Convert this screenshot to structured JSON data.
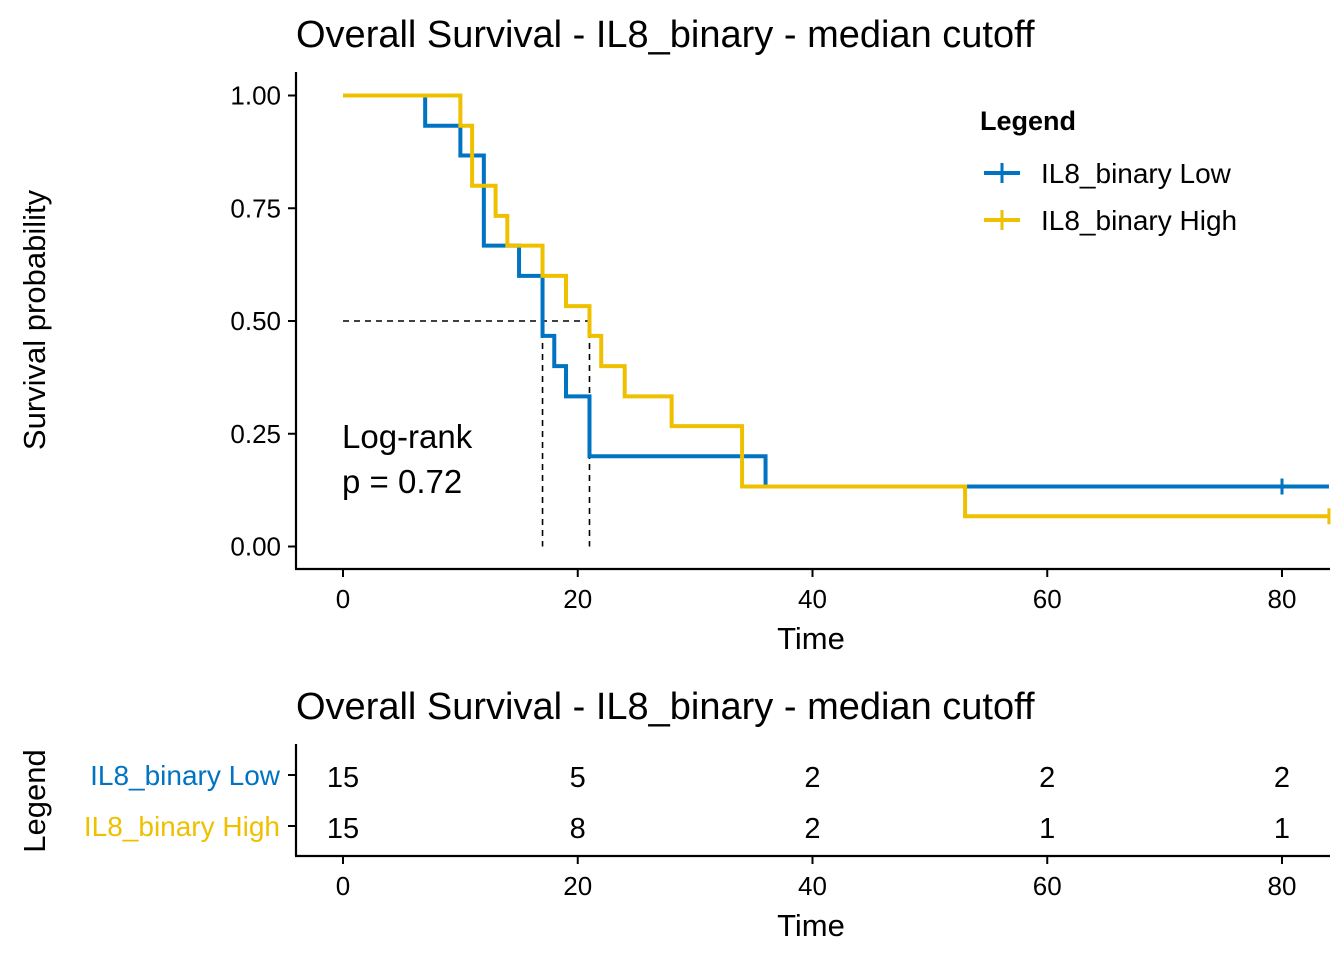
{
  "colors": {
    "low": "#0073C2",
    "high": "#EFC000",
    "axis": "#000000"
  },
  "chart_data": [
    {
      "type": "line",
      "subtype": "kaplan-meier",
      "title": "Overall Survival - IL8_binary  - median cutoff",
      "xlabel": "Time",
      "ylabel": "Survival probability",
      "xlim": [
        -4,
        84
      ],
      "ylim": [
        -0.05,
        1.05
      ],
      "x_ticks": [
        0,
        20,
        40,
        60,
        80
      ],
      "y_ticks": [
        0,
        0.25,
        0.5,
        0.75,
        1.0
      ],
      "y_tick_labels": [
        "0.00",
        "0.25",
        "0.50",
        "0.75",
        "1.00"
      ],
      "x_tick_labels": [
        "0",
        "20",
        "40",
        "60",
        "80"
      ],
      "grid": false,
      "legend": {
        "title": "Legend",
        "position": "top-right",
        "entries": [
          "IL8_binary Low",
          "IL8_binary High"
        ]
      },
      "annotation": {
        "line1": "Log-rank",
        "line2": "p = 0.72"
      },
      "median_survival": {
        "y": 0.5,
        "times": [
          17,
          21
        ]
      },
      "series": [
        {
          "name": "IL8_binary Low",
          "color": "#0073C2",
          "steps": [
            [
              0,
              1.0
            ],
            [
              7,
              0.933
            ],
            [
              10,
              0.867
            ],
            [
              12,
              0.667
            ],
            [
              15,
              0.6
            ],
            [
              17,
              0.467
            ],
            [
              18,
              0.4
            ],
            [
              19,
              0.333
            ],
            [
              21,
              0.2
            ],
            [
              36,
              0.133
            ],
            [
              84,
              0.133
            ]
          ],
          "censor": [
            [
              80,
              0.133
            ]
          ]
        },
        {
          "name": "IL8_binary High",
          "color": "#EFC000",
          "steps": [
            [
              0,
              1.0
            ],
            [
              10,
              0.933
            ],
            [
              11,
              0.8
            ],
            [
              13,
              0.733
            ],
            [
              14,
              0.667
            ],
            [
              17,
              0.6
            ],
            [
              19,
              0.533
            ],
            [
              21,
              0.467
            ],
            [
              22,
              0.4
            ],
            [
              24,
              0.333
            ],
            [
              28,
              0.267
            ],
            [
              34,
              0.133
            ],
            [
              53,
              0.067
            ],
            [
              84,
              0.067
            ]
          ],
          "censor": [
            [
              84,
              0.067
            ]
          ]
        }
      ]
    },
    {
      "type": "table",
      "title": "Overall Survival - IL8_binary  - median cutoff",
      "xlabel": "Time",
      "ylabel": "Legend",
      "x_ticks": [
        0,
        20,
        40,
        60,
        80
      ],
      "x_tick_labels": [
        "0",
        "20",
        "40",
        "60",
        "80"
      ],
      "rows": [
        {
          "name": "IL8_binary Low",
          "color": "#0073C2",
          "values": [
            15,
            5,
            2,
            2,
            2
          ]
        },
        {
          "name": "IL8_binary High",
          "color": "#EFC000",
          "values": [
            15,
            8,
            2,
            1,
            1
          ]
        }
      ]
    }
  ]
}
